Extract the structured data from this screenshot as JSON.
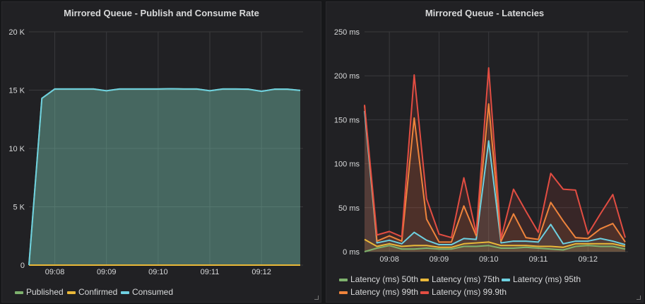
{
  "chart_data": [
    {
      "type": "area",
      "title": "Mirrored Queue - Publish and Consume Rate",
      "x_ticks": [
        "09:08",
        "09:09",
        "09:10",
        "09:11",
        "09:12"
      ],
      "y_ticks": [
        "0",
        "5 K",
        "10 K",
        "15 K",
        "20 K"
      ],
      "ylim": [
        0,
        20000
      ],
      "x": [
        "09:07:30",
        "09:07:45",
        "09:08:00",
        "09:08:15",
        "09:08:30",
        "09:08:45",
        "09:09:00",
        "09:09:15",
        "09:09:30",
        "09:09:45",
        "09:10:00",
        "09:10:15",
        "09:10:30",
        "09:10:45",
        "09:11:00",
        "09:11:15",
        "09:11:30",
        "09:11:45",
        "09:12:00",
        "09:12:15",
        "09:12:30",
        "09:12:45"
      ],
      "grid": true,
      "legend": "bottom",
      "series": [
        {
          "name": "Published",
          "color": "#7EB26D",
          "values": [
            0,
            14300,
            15100,
            15100,
            15100,
            15100,
            14950,
            15100,
            15100,
            15100,
            15100,
            15120,
            15100,
            15100,
            14950,
            15100,
            15100,
            15080,
            14900,
            15080,
            15080,
            14980
          ]
        },
        {
          "name": "Confirmed",
          "color": "#EAB839",
          "values": [
            0,
            0,
            0,
            0,
            0,
            0,
            0,
            0,
            0,
            0,
            0,
            0,
            0,
            0,
            0,
            0,
            0,
            0,
            0,
            0,
            0,
            0
          ]
        },
        {
          "name": "Consumed",
          "color": "#6ED0E0",
          "values": [
            0,
            14300,
            15100,
            15100,
            15100,
            15100,
            14950,
            15100,
            15100,
            15100,
            15100,
            15120,
            15100,
            15100,
            14950,
            15100,
            15100,
            15080,
            14900,
            15080,
            15080,
            14980
          ]
        }
      ]
    },
    {
      "type": "area",
      "title": "Mirrored Queue - Latencies",
      "x_ticks": [
        "09:08",
        "09:09",
        "09:10",
        "09:11",
        "09:12"
      ],
      "y_ticks": [
        "0 ms",
        "50 ms",
        "100 ms",
        "150 ms",
        "200 ms",
        "250 ms"
      ],
      "ylim": [
        0,
        250
      ],
      "x": [
        "09:07:30",
        "09:07:45",
        "09:08:00",
        "09:08:15",
        "09:08:30",
        "09:08:45",
        "09:09:00",
        "09:09:15",
        "09:09:30",
        "09:09:45",
        "09:10:00",
        "09:10:15",
        "09:10:30",
        "09:10:45",
        "09:11:00",
        "09:11:15",
        "09:11:30",
        "09:11:45",
        "09:12:00",
        "09:12:15",
        "09:12:30",
        "09:12:45"
      ],
      "grid": true,
      "legend": "bottom",
      "series": [
        {
          "name": "Latency (ms) 50th",
          "color": "#7EB26D",
          "values": [
            0,
            4,
            7,
            3,
            3,
            4,
            3,
            3,
            6,
            6,
            7,
            4,
            4,
            5,
            4,
            3,
            2,
            6,
            7,
            6,
            6,
            3
          ]
        },
        {
          "name": "Latency (ms) 75th",
          "color": "#EAB839",
          "values": [
            14,
            6,
            9,
            6,
            7,
            7,
            5,
            5,
            9,
            10,
            11,
            7,
            7,
            7,
            6,
            6,
            5,
            9,
            9,
            9,
            9,
            6
          ]
        },
        {
          "name": "Latency (ms) 95th",
          "color": "#6ED0E0",
          "values": [
            160,
            10,
            13,
            9,
            22,
            13,
            8,
            8,
            15,
            14,
            126,
            10,
            12,
            12,
            11,
            31,
            9,
            12,
            12,
            15,
            12,
            8
          ]
        },
        {
          "name": "Latency (ms) 99th",
          "color": "#EF843C",
          "values": [
            166,
            12,
            18,
            12,
            152,
            37,
            11,
            11,
            52,
            18,
            168,
            12,
            43,
            16,
            14,
            56,
            35,
            16,
            15,
            26,
            32,
            11
          ]
        },
        {
          "name": "Latency (ms) 99.9th",
          "color": "#E24D42",
          "values": [
            167,
            19,
            23,
            17,
            201,
            60,
            20,
            16,
            84,
            21,
            209,
            15,
            71,
            46,
            22,
            89,
            71,
            70,
            20,
            43,
            65,
            16
          ]
        }
      ]
    }
  ]
}
